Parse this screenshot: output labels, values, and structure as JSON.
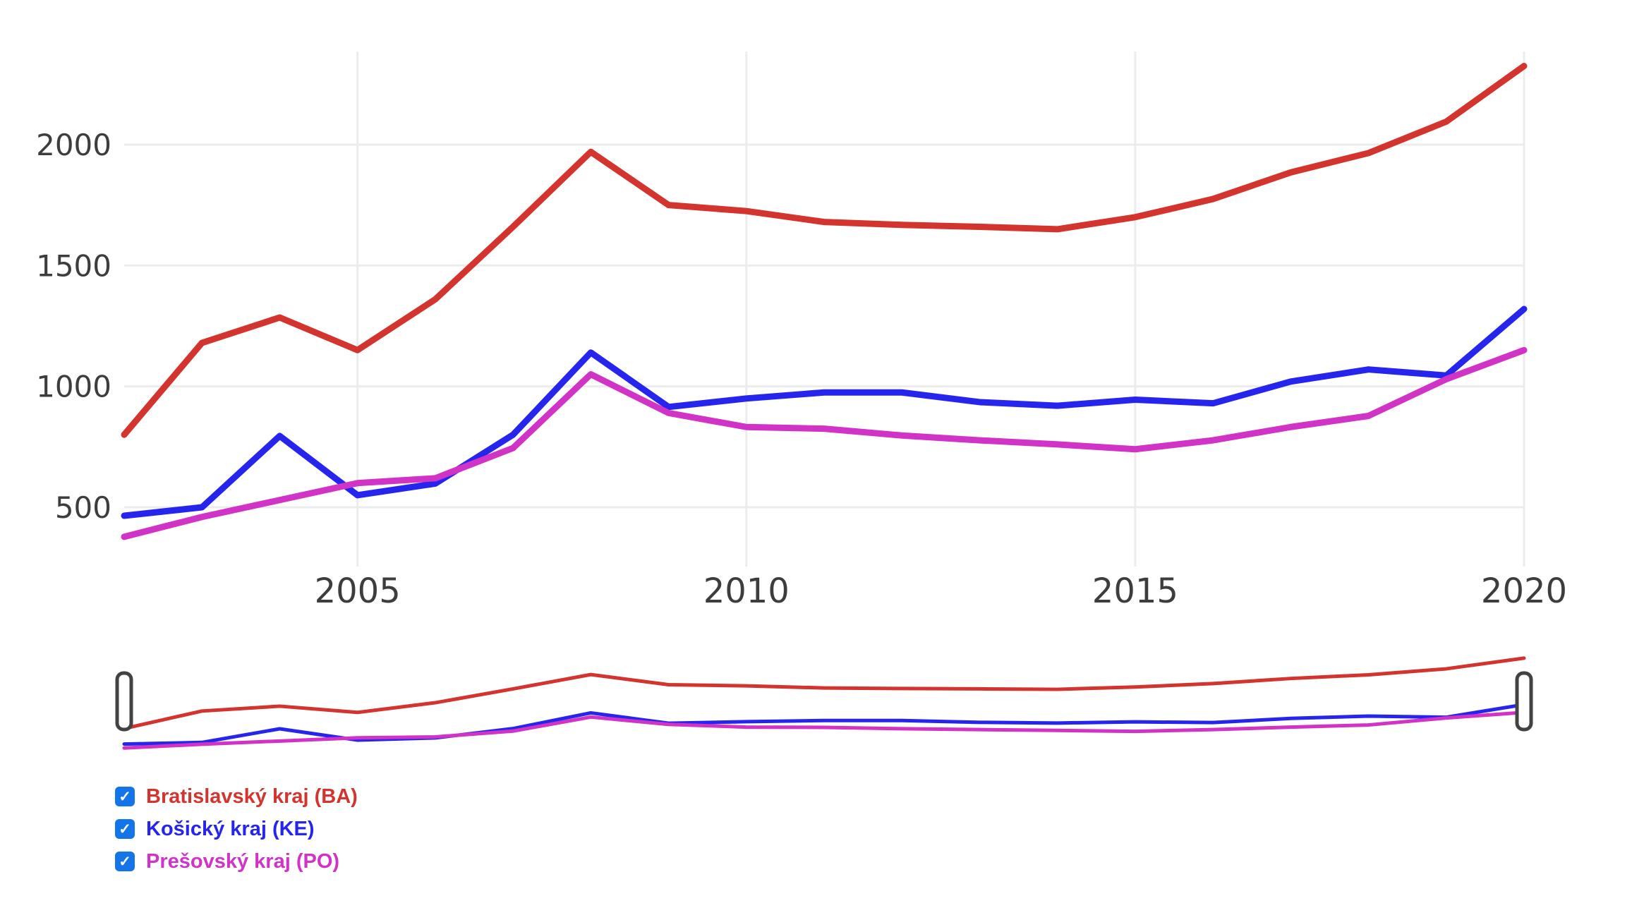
{
  "chart_data": {
    "type": "line",
    "title": "",
    "xlabel": "",
    "ylabel": "",
    "x": [
      2002,
      2003,
      2004,
      2005,
      2006,
      2007,
      2008,
      2009,
      2010,
      2011,
      2012,
      2013,
      2014,
      2015,
      2016,
      2017,
      2018,
      2019,
      2020
    ],
    "series": [
      {
        "id": "ba",
        "name": "Bratislavský kraj (BA)",
        "color": "#d3342e",
        "values": [
          800,
          1180,
          1285,
          1150,
          1360,
          1660,
          1970,
          1750,
          1725,
          1680,
          1668,
          1660,
          1650,
          1700,
          1775,
          1885,
          1965,
          2095,
          2325
        ]
      },
      {
        "id": "ke",
        "name": "Košický kraj (KE)",
        "color": "#2525ee",
        "values": [
          465,
          500,
          795,
          550,
          598,
          800,
          1140,
          915,
          950,
          975,
          975,
          935,
          920,
          945,
          930,
          1020,
          1070,
          1045,
          1320
        ]
      },
      {
        "id": "po",
        "name": "Prešovský kraj (PO)",
        "color": "#d033c6",
        "values": [
          378,
          460,
          530,
          600,
          620,
          745,
          1050,
          890,
          832,
          825,
          797,
          777,
          760,
          740,
          777,
          832,
          878,
          1030,
          1150
        ]
      }
    ],
    "x_ticks": [
      2005,
      2010,
      2015,
      2020
    ],
    "y_ticks": [
      500,
      1000,
      1500,
      2000
    ],
    "xlim": [
      2002,
      2020
    ],
    "ylim_main": [
      255,
      2385
    ],
    "ylim_nav": [
      0,
      2400
    ],
    "grid": true,
    "gridline_color": "#ececec",
    "legend_position": "bottom-left",
    "has_navigator": true
  },
  "navigator": {
    "handle_fill": "#ffffff",
    "handle_border": "#424242"
  },
  "legend": {
    "checkbox_color": "#1375e8",
    "check_glyph": "✓",
    "items": [
      {
        "label": "Bratislavský kraj (BA)",
        "color": "#d3342e",
        "checked": true
      },
      {
        "label": "Košický kraj (KE)",
        "color": "#2525ee",
        "checked": true
      },
      {
        "label": "Prešovský kraj (PO)",
        "color": "#d033c6",
        "checked": true
      }
    ]
  }
}
